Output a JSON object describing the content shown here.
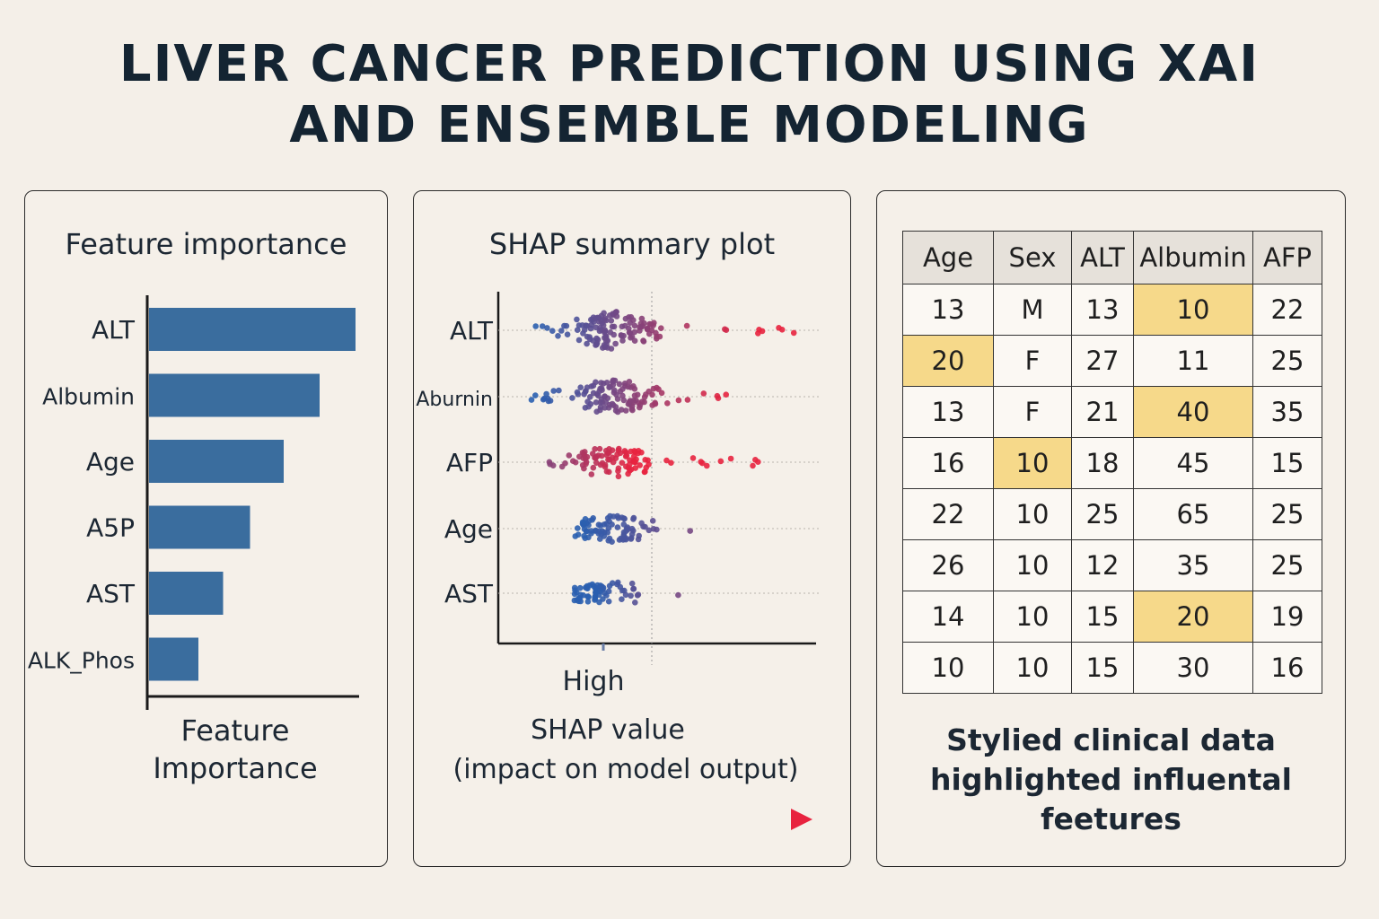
{
  "title": {
    "line1": "LIVER CANCER PREDICTION USING XAI",
    "line2": "AND ENSEMBLE MODELING"
  },
  "chart_data": [
    {
      "type": "bar",
      "orientation": "horizontal",
      "title": "Feature importance",
      "categories": [
        "ALT",
        "Albumin",
        "Age",
        "A5P",
        "AST",
        "ALK_Phos"
      ],
      "values": [
        0.92,
        0.76,
        0.6,
        0.45,
        0.33,
        0.22
      ],
      "xlabel": "Feature Importance",
      "ylabel": "",
      "xlim": [
        0,
        1
      ],
      "bar_color": "#3a6d9e",
      "grid": false
    },
    {
      "type": "scatter",
      "title": "SHAP summary plot",
      "features": [
        "ALT",
        "Aburnin",
        "AFP",
        "Age",
        "AST"
      ],
      "xlabel_line1": "High",
      "xlabel_line2": "SHAP value",
      "xlabel_line3": "(impact on model output)",
      "color_low": "#2a5fb0",
      "color_high": "#e8233f",
      "xlim": [
        -1,
        2.2
      ],
      "series": [
        {
          "feature": "ALT",
          "spread_left": -0.75,
          "spread_right": 2.0,
          "density_center": 0.0,
          "skew": 0.55
        },
        {
          "feature": "Aburnin",
          "spread_left": -0.7,
          "spread_right": 1.7,
          "density_center": 0.0,
          "skew": 0.45
        },
        {
          "feature": "AFP",
          "spread_left": -0.55,
          "spread_right": 1.5,
          "density_center": 0.0,
          "skew": 0.35
        },
        {
          "feature": "Age",
          "spread_left": -0.25,
          "spread_right": 1.1,
          "density_center": 0.0,
          "skew": 0.2
        },
        {
          "feature": "AST",
          "spread_left": -0.1,
          "spread_right": 0.75,
          "density_center": 0.0,
          "skew": 0.1
        }
      ]
    }
  ],
  "table": {
    "headers": [
      "Age",
      "Sex",
      "ALT",
      "Albumin",
      "AFP"
    ],
    "rows": [
      [
        "13",
        "M",
        "13",
        "10",
        "22"
      ],
      [
        "20",
        "F",
        "27",
        "11",
        "25"
      ],
      [
        "13",
        "F",
        "21",
        "40",
        "35"
      ],
      [
        "16",
        "10",
        "18",
        "45",
        "15"
      ],
      [
        "22",
        "10",
        "25",
        "65",
        "25"
      ],
      [
        "26",
        "10",
        "12",
        "35",
        "25"
      ],
      [
        "14",
        "10",
        "15",
        "20",
        "19"
      ],
      [
        "10",
        "10",
        "15",
        "30",
        "16"
      ]
    ],
    "highlighted": [
      [
        0,
        3
      ],
      [
        1,
        0
      ],
      [
        2,
        3
      ],
      [
        3,
        1
      ],
      [
        6,
        3
      ]
    ],
    "highlight_color": "#f6d98a"
  },
  "caption": {
    "line1": "Stylied clinical data",
    "line2": "highlighted influental",
    "line3": "feetures"
  }
}
